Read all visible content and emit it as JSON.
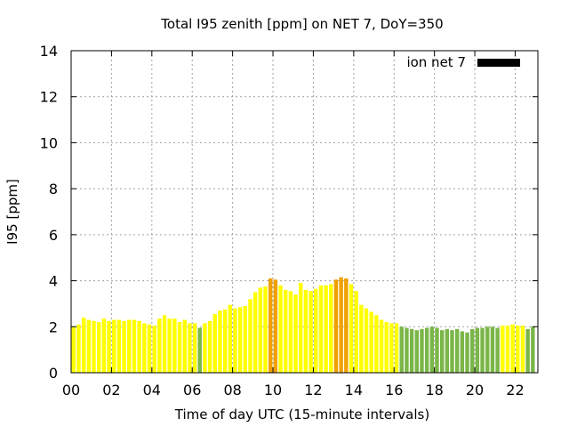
{
  "chart_data": {
    "type": "bar",
    "title": "Total I95 zenith [ppm] on NET 7, DoY=350",
    "xlabel": "Time of day UTC (15-minute intervals)",
    "ylabel": "I95 [ppm]",
    "ylim": [
      0,
      14
    ],
    "yticks": [
      "0",
      "2",
      "4",
      "6",
      "8",
      "10",
      "12",
      "14"
    ],
    "xlim": [
      0,
      23.125
    ],
    "xticks": [
      {
        "label": "00",
        "value": 0
      },
      {
        "label": "02",
        "value": 2
      },
      {
        "label": "04",
        "value": 4
      },
      {
        "label": "06",
        "value": 6
      },
      {
        "label": "08",
        "value": 8
      },
      {
        "label": "10",
        "value": 10
      },
      {
        "label": "12",
        "value": 12
      },
      {
        "label": "14",
        "value": 14
      },
      {
        "label": "16",
        "value": 16
      },
      {
        "label": "18",
        "value": 18
      },
      {
        "label": "20",
        "value": 20
      },
      {
        "label": "22",
        "value": 22
      }
    ],
    "grid": true,
    "legend": {
      "label": "ion net 7",
      "placement": "top-right",
      "color": "#000000"
    },
    "category_colors": {
      "high": "#f0a000",
      "medium": "#ffff00",
      "low": "#7ab648"
    },
    "series": [
      {
        "values": [
          2.0,
          2.1,
          2.4,
          2.3,
          2.25,
          2.2,
          2.35,
          2.25,
          2.3,
          2.3,
          2.25,
          2.3,
          2.3,
          2.25,
          2.15,
          2.1,
          2.05,
          2.35,
          2.5,
          2.35,
          2.35,
          2.2,
          2.3,
          2.15,
          2.15,
          1.95,
          2.15,
          2.25,
          2.55,
          2.7,
          2.75,
          2.95,
          2.8,
          2.85,
          2.9,
          3.2,
          3.5,
          3.7,
          3.75,
          4.1,
          4.05,
          3.8,
          3.6,
          3.55,
          3.4,
          3.9,
          3.6,
          3.55,
          3.65,
          3.8,
          3.8,
          3.85,
          4.05,
          4.15,
          4.1,
          3.85,
          3.55,
          2.95,
          2.8,
          2.65,
          2.5,
          2.3,
          2.2,
          2.15,
          2.15,
          2.0,
          1.95,
          1.9,
          1.85,
          1.9,
          1.95,
          2.0,
          1.95,
          1.85,
          1.9,
          1.85,
          1.9,
          1.8,
          1.75,
          1.9,
          1.95,
          1.95,
          2.0,
          2.0,
          1.95,
          2.05,
          2.05,
          2.1,
          2.05,
          2.05,
          1.9,
          2.0
        ],
        "levels": [
          "medium",
          "medium",
          "medium",
          "medium",
          "medium",
          "medium",
          "medium",
          "medium",
          "medium",
          "medium",
          "medium",
          "medium",
          "medium",
          "medium",
          "medium",
          "medium",
          "medium",
          "medium",
          "medium",
          "medium",
          "medium",
          "medium",
          "medium",
          "medium",
          "medium",
          "low",
          "medium",
          "medium",
          "medium",
          "medium",
          "medium",
          "medium",
          "medium",
          "medium",
          "medium",
          "medium",
          "medium",
          "medium",
          "medium",
          "high",
          "high",
          "medium",
          "medium",
          "medium",
          "medium",
          "medium",
          "medium",
          "medium",
          "medium",
          "medium",
          "medium",
          "medium",
          "high",
          "high",
          "high",
          "medium",
          "medium",
          "medium",
          "medium",
          "medium",
          "medium",
          "medium",
          "medium",
          "medium",
          "medium",
          "low",
          "low",
          "low",
          "low",
          "low",
          "low",
          "low",
          "low",
          "low",
          "low",
          "low",
          "low",
          "low",
          "low",
          "low",
          "low",
          "low",
          "low",
          "low",
          "low",
          "medium",
          "medium",
          "medium",
          "medium",
          "medium",
          "low",
          "low"
        ]
      }
    ]
  }
}
